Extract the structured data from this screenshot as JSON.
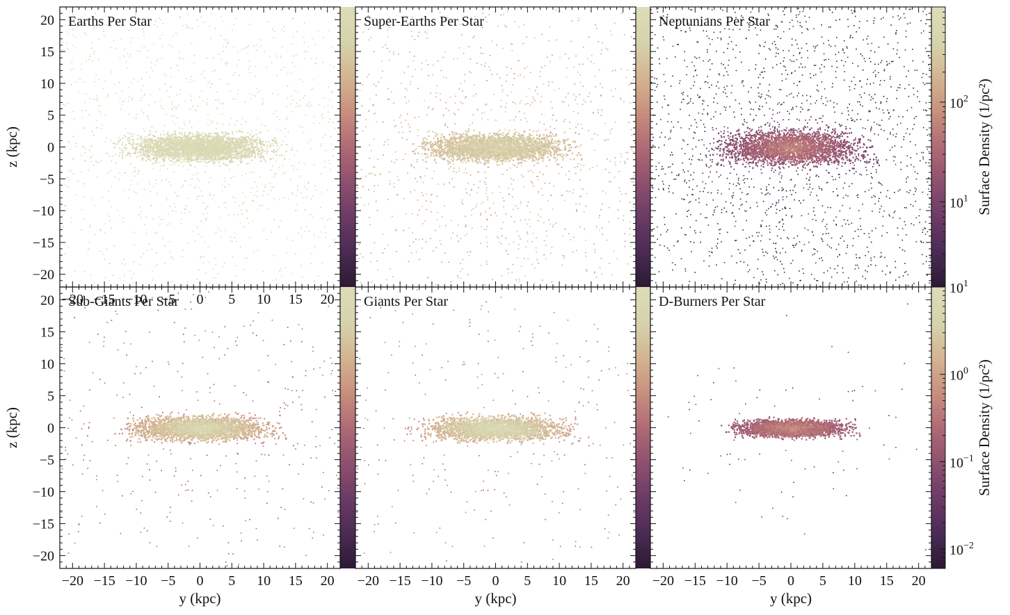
{
  "chart_data": [
    {
      "type": "heatmap",
      "title": "Earths Per Star",
      "xlabel": "",
      "ylabel": "z  (kpc)",
      "xlim": [
        -22,
        22
      ],
      "ylim": [
        -22,
        22
      ],
      "xticks": [
        "−20",
        "−15",
        "−10",
        "−5",
        "0",
        "5",
        "10",
        "15",
        "20"
      ],
      "yticks": [
        "20",
        "15",
        "10",
        "5",
        "0",
        "−5",
        "−10",
        "−15",
        "−20"
      ],
      "disk": {
        "half_length_kpc": 15,
        "half_height_kpc": 4,
        "core_level": 0.97,
        "halo_level": 0.95,
        "halo_density": 0.55
      },
      "colorbar": "row1"
    },
    {
      "type": "heatmap",
      "title": "Super-Earths Per Star",
      "xlabel": "",
      "ylabel": "",
      "xlim": [
        -22,
        22
      ],
      "ylim": [
        -22,
        22
      ],
      "disk": {
        "half_length_kpc": 15,
        "half_height_kpc": 4,
        "core_level": 0.88,
        "halo_level": 0.72,
        "halo_density": 0.5
      },
      "colorbar": "row1"
    },
    {
      "type": "heatmap",
      "title": "Neptunians Per Star",
      "xlabel": "",
      "ylabel": "",
      "xlim": [
        -22,
        22
      ],
      "ylim": [
        -22,
        22
      ],
      "disk": {
        "half_length_kpc": 15,
        "half_height_kpc": 5,
        "core_level": 0.6,
        "halo_level": 0.08,
        "halo_density": 0.75
      },
      "colorbar": "row1"
    },
    {
      "type": "heatmap",
      "title": "Sub-Giants Per Star",
      "xlabel": "y  (kpc)",
      "ylabel": "z  (kpc)",
      "xlim": [
        -22,
        22
      ],
      "ylim": [
        -22,
        22
      ],
      "xticks": [
        "−20",
        "−15",
        "−10",
        "−5",
        "0",
        "5",
        "10",
        "15",
        "20"
      ],
      "yticks": [
        "20",
        "15",
        "10",
        "5",
        "0",
        "−5",
        "−10",
        "−15",
        "−20"
      ],
      "disk": {
        "half_length_kpc": 15,
        "half_height_kpc": 3.5,
        "core_level": 0.95,
        "halo_level": 0.45,
        "halo_density": 0.18
      },
      "colorbar": "row2"
    },
    {
      "type": "heatmap",
      "title": "Giants Per Star",
      "xlabel": "y  (kpc)",
      "ylabel": "",
      "xlim": [
        -22,
        22
      ],
      "ylim": [
        -22,
        22
      ],
      "xticks": [
        "−20",
        "−15",
        "−10",
        "−5",
        "0",
        "5",
        "10",
        "15",
        "20"
      ],
      "disk": {
        "half_length_kpc": 15,
        "half_height_kpc": 3.5,
        "core_level": 0.97,
        "halo_level": 0.5,
        "halo_density": 0.15
      },
      "colorbar": "row2"
    },
    {
      "type": "heatmap",
      "title": "D-Burners Per Star",
      "xlabel": "y  (kpc)",
      "ylabel": "",
      "xlim": [
        -22,
        22
      ],
      "ylim": [
        -22,
        22
      ],
      "xticks": [
        "−20",
        "−15",
        "−10",
        "−5",
        "0",
        "5",
        "10",
        "15",
        "20"
      ],
      "disk": {
        "half_length_kpc": 12,
        "half_height_kpc": 2.5,
        "core_level": 0.62,
        "halo_level": 0.25,
        "halo_density": 0.06
      },
      "colorbar": "row2"
    }
  ],
  "colorbars": {
    "row1": {
      "label": "Surface Density (1/pc²)",
      "scale": "log",
      "range": [
        1.4,
        900
      ],
      "ticks": [
        {
          "value": 10,
          "base": "10",
          "exp": "1"
        },
        {
          "value": 100,
          "base": "10",
          "exp": "2"
        }
      ],
      "tick_note": "label 10^1 is shared with the boundary at the bottom of the row"
    },
    "row2": {
      "label": "Surface Density (1/pc²)",
      "scale": "log",
      "range": [
        0.006,
        10
      ],
      "ticks": [
        {
          "value": 10,
          "base": "10",
          "exp": "1"
        },
        {
          "value": 1,
          "base": "10",
          "exp": "0"
        },
        {
          "value": 0.1,
          "base": "10",
          "exp": "−1"
        },
        {
          "value": 0.01,
          "base": "10",
          "exp": "−2"
        }
      ]
    },
    "colormap": [
      "#2b1a33",
      "#4b2b55",
      "#6b3b66",
      "#8f506f",
      "#b06a76",
      "#c8907e",
      "#d4b592",
      "#d6d4ad",
      "#dcdcb8"
    ]
  }
}
